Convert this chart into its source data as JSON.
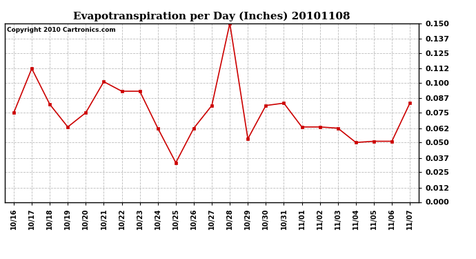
{
  "title": "Evapotranspiration per Day (Inches) 20101108",
  "copyright_text": "Copyright 2010 Cartronics.com",
  "x_labels": [
    "10/16",
    "10/17",
    "10/18",
    "10/19",
    "10/20",
    "10/21",
    "10/22",
    "10/23",
    "10/24",
    "10/25",
    "10/26",
    "10/27",
    "10/28",
    "10/29",
    "10/30",
    "10/31",
    "11/01",
    "11/02",
    "11/03",
    "11/04",
    "11/05",
    "11/06",
    "11/07"
  ],
  "y_values": [
    0.075,
    0.112,
    0.082,
    0.063,
    0.075,
    0.101,
    0.093,
    0.093,
    0.062,
    0.033,
    0.062,
    0.081,
    0.15,
    0.053,
    0.081,
    0.083,
    0.063,
    0.063,
    0.062,
    0.05,
    0.051,
    0.051,
    0.083
  ],
  "line_color": "#cc0000",
  "marker": "s",
  "marker_size": 2.5,
  "line_width": 1.2,
  "background_color": "#ffffff",
  "plot_bg_color": "#ffffff",
  "grid_color": "#bbbbbb",
  "ylim": [
    0.0,
    0.15
  ],
  "yticks": [
    0.0,
    0.012,
    0.025,
    0.037,
    0.05,
    0.062,
    0.075,
    0.087,
    0.1,
    0.112,
    0.125,
    0.137,
    0.15
  ],
  "title_fontsize": 11,
  "copyright_fontsize": 6.5,
  "tick_fontsize": 7,
  "ytick_fontsize": 8
}
